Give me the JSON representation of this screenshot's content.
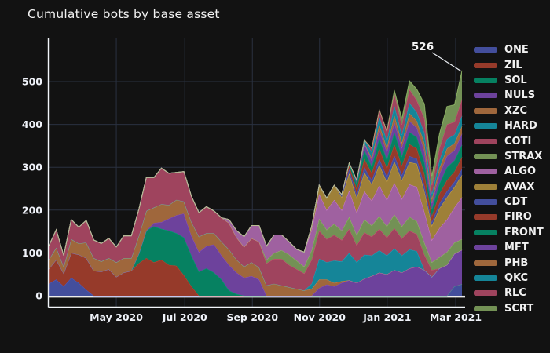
{
  "title": "Cumulative bots by base asset",
  "annotation": {
    "text": "526"
  },
  "colors": {
    "background": "#121212",
    "grid": "#2a3140",
    "axis_line": "#f2f5fa",
    "zero_line": "#ebebeb",
    "tick_text": "#f0f3fa",
    "annotation_line": "#eceff4"
  },
  "chart_data": {
    "type": "area",
    "stacked": true,
    "title": "Cumulative bots by base asset",
    "xlabel": "",
    "ylabel": "",
    "grid": true,
    "legend_position": "right",
    "y_ticks": [
      0,
      100,
      200,
      300,
      400,
      500
    ],
    "y_range": [
      -27,
      600
    ],
    "x_tick_labels": [
      "May 2020",
      "Jul 2020",
      "Sep 2020",
      "Nov 2020",
      "Jan 2021",
      "Mar 2021"
    ],
    "x_tick_positions": [
      0.163,
      0.328,
      0.491,
      0.653,
      0.816,
      0.981
    ],
    "annotation": {
      "text": "526",
      "value": 526,
      "point_index": 55
    },
    "palette_muted": [
      "#434e9c",
      "#963a2a",
      "#068161",
      "#6d429c",
      "#9f673c",
      "#158598",
      "#9f445e",
      "#739155",
      "#9f61a0",
      "#9e8038"
    ],
    "palette_solid": [
      "#636efa",
      "#ef553b",
      "#00cc96",
      "#ab63fa",
      "#ffa15a",
      "#19d3f3",
      "#ff6692",
      "#b6e880",
      "#ff97ff",
      "#fecb52"
    ],
    "n_points": 56,
    "series": [
      {
        "name": "ONE",
        "color_index": 0,
        "values": [
          28,
          38,
          22,
          42,
          30,
          14,
          0,
          0,
          0,
          0,
          0,
          0,
          0,
          0,
          0,
          0,
          0,
          0,
          0,
          0,
          0,
          0,
          0,
          0,
          0,
          0,
          0,
          0,
          0,
          0,
          0,
          0,
          0,
          0,
          0,
          0,
          0,
          0,
          0,
          0,
          0,
          0,
          0,
          0,
          0,
          0,
          0,
          0,
          0,
          0,
          0,
          0,
          0,
          0,
          22,
          27
        ]
      },
      {
        "name": "ZIL",
        "color_index": 1,
        "values": [
          34,
          46,
          30,
          58,
          66,
          74,
          58,
          56,
          62,
          44,
          54,
          58,
          76,
          88,
          78,
          84,
          72,
          70,
          48,
          22,
          0,
          0,
          0,
          0,
          0,
          0,
          0,
          0,
          0,
          0,
          0,
          0,
          0,
          0,
          0,
          0,
          0,
          0,
          0,
          0,
          0,
          0,
          0,
          0,
          0,
          0,
          0,
          0,
          0,
          0,
          0,
          0,
          0,
          0,
          0,
          0
        ]
      },
      {
        "name": "SOL",
        "color_index": 2,
        "values": [
          0,
          0,
          0,
          0,
          0,
          0,
          0,
          0,
          0,
          0,
          0,
          0,
          22,
          64,
          84,
          72,
          80,
          76,
          88,
          72,
          56,
          64,
          54,
          38,
          12,
          4,
          0,
          0,
          0,
          0,
          0,
          0,
          0,
          0,
          0,
          0,
          0,
          0,
          0,
          0,
          0,
          0,
          0,
          0,
          0,
          0,
          0,
          0,
          0,
          0,
          0,
          0,
          0,
          0,
          0,
          0
        ]
      },
      {
        "name": "NULS",
        "color_index": 3,
        "values": [
          0,
          0,
          0,
          0,
          0,
          0,
          0,
          0,
          0,
          0,
          0,
          0,
          0,
          0,
          8,
          16,
          28,
          42,
          56,
          46,
          46,
          52,
          66,
          56,
          60,
          50,
          42,
          46,
          38,
          0,
          0,
          0,
          0,
          0,
          0,
          0,
          18,
          26,
          22,
          30,
          36,
          30,
          40,
          46,
          54,
          50,
          60,
          54,
          64,
          68,
          60,
          44,
          64,
          72,
          76,
          80
        ]
      },
      {
        "name": "XZC",
        "color_index": 4,
        "values": [
          22,
          28,
          16,
          32,
          26,
          36,
          30,
          24,
          26,
          34,
          34,
          30,
          42,
          46,
          36,
          42,
          32,
          36,
          28,
          32,
          36,
          30,
          26,
          32,
          36,
          30,
          26,
          32,
          28,
          24,
          28,
          24,
          20,
          16,
          12,
          16,
          20,
          12,
          8,
          4,
          0,
          0,
          0,
          0,
          0,
          0,
          0,
          0,
          0,
          0,
          0,
          0,
          0,
          0,
          0,
          0
        ]
      },
      {
        "name": "HARD",
        "color_index": 5,
        "values": [
          0,
          0,
          0,
          0,
          0,
          0,
          0,
          0,
          0,
          0,
          0,
          0,
          0,
          0,
          0,
          0,
          0,
          0,
          0,
          0,
          0,
          0,
          0,
          0,
          0,
          0,
          0,
          0,
          0,
          0,
          0,
          0,
          0,
          0,
          0,
          12,
          48,
          40,
          52,
          46,
          64,
          48,
          56,
          48,
          52,
          44,
          50,
          40,
          44,
          36,
          0,
          0,
          0,
          0,
          0,
          0
        ]
      },
      {
        "name": "COTI",
        "color_index": 6,
        "values": [
          32,
          42,
          26,
          46,
          38,
          52,
          42,
          42,
          46,
          36,
          52,
          52,
          62,
          78,
          70,
          84,
          74,
          64,
          70,
          60,
          56,
          62,
          52,
          56,
          62,
          52,
          46,
          56,
          60,
          52,
          58,
          62,
          52,
          46,
          40,
          56,
          66,
          54,
          60,
          50,
          56,
          40,
          52,
          44,
          50,
          42,
          48,
          40,
          44,
          40,
          36,
          16,
          0,
          0,
          0,
          0
        ]
      },
      {
        "name": "STRAX",
        "color_index": 7,
        "values": [
          0,
          0,
          0,
          0,
          0,
          0,
          0,
          0,
          0,
          0,
          0,
          0,
          0,
          0,
          0,
          0,
          0,
          0,
          0,
          0,
          0,
          0,
          0,
          0,
          0,
          0,
          0,
          0,
          0,
          8,
          14,
          20,
          24,
          20,
          16,
          22,
          28,
          22,
          26,
          22,
          28,
          24,
          30,
          26,
          30,
          26,
          32,
          28,
          32,
          30,
          28,
          18,
          26,
          30,
          26,
          25
        ]
      },
      {
        "name": "ALGO",
        "color_index": 8,
        "values": [
          0,
          0,
          0,
          0,
          0,
          0,
          0,
          0,
          0,
          0,
          0,
          0,
          0,
          0,
          0,
          0,
          0,
          0,
          0,
          0,
          0,
          0,
          0,
          0,
          8,
          16,
          24,
          30,
          38,
          32,
          42,
          36,
          30,
          26,
          34,
          48,
          58,
          46,
          56,
          48,
          62,
          52,
          66,
          58,
          72,
          62,
          74,
          64,
          76,
          80,
          72,
          52,
          68,
          76,
          82,
          98
        ]
      },
      {
        "name": "AVAX",
        "color_index": 9,
        "values": [
          0,
          0,
          0,
          0,
          0,
          0,
          0,
          0,
          0,
          0,
          0,
          0,
          0,
          0,
          0,
          0,
          0,
          0,
          0,
          0,
          0,
          0,
          0,
          0,
          0,
          0,
          0,
          0,
          0,
          0,
          0,
          0,
          0,
          0,
          0,
          8,
          20,
          28,
          34,
          30,
          40,
          34,
          44,
          38,
          48,
          42,
          50,
          44,
          52,
          54,
          48,
          34,
          46,
          52,
          48,
          52
        ]
      },
      {
        "name": "CDT",
        "color_index": 0,
        "values": [
          0,
          0,
          0,
          0,
          0,
          0,
          0,
          0,
          0,
          0,
          0,
          0,
          0,
          0,
          0,
          0,
          0,
          0,
          0,
          0,
          0,
          0,
          0,
          0,
          0,
          0,
          0,
          0,
          0,
          0,
          0,
          0,
          0,
          0,
          0,
          0,
          0,
          0,
          0,
          6,
          10,
          8,
          12,
          10,
          14,
          12,
          14,
          12,
          14,
          12,
          14,
          8,
          12,
          14,
          12,
          14
        ]
      },
      {
        "name": "FIRO",
        "color_index": 1,
        "values": [
          0,
          0,
          0,
          0,
          0,
          0,
          0,
          0,
          0,
          0,
          0,
          0,
          0,
          0,
          0,
          0,
          0,
          0,
          0,
          0,
          0,
          0,
          0,
          0,
          0,
          0,
          0,
          0,
          0,
          0,
          0,
          0,
          0,
          0,
          0,
          0,
          0,
          0,
          0,
          0,
          8,
          14,
          20,
          16,
          24,
          20,
          26,
          22,
          28,
          24,
          26,
          14,
          22,
          26,
          24,
          28
        ]
      },
      {
        "name": "FRONT",
        "color_index": 2,
        "values": [
          0,
          0,
          0,
          0,
          0,
          0,
          0,
          0,
          0,
          0,
          0,
          0,
          0,
          0,
          0,
          0,
          0,
          0,
          0,
          0,
          0,
          0,
          0,
          0,
          0,
          0,
          0,
          0,
          0,
          0,
          0,
          0,
          0,
          0,
          0,
          0,
          0,
          0,
          0,
          0,
          6,
          12,
          20,
          16,
          24,
          20,
          28,
          22,
          28,
          26,
          28,
          16,
          24,
          30,
          26,
          28
        ]
      },
      {
        "name": "MFT",
        "color_index": 3,
        "values": [
          0,
          0,
          0,
          0,
          0,
          0,
          0,
          0,
          0,
          0,
          0,
          0,
          0,
          0,
          0,
          0,
          0,
          0,
          0,
          0,
          0,
          0,
          0,
          0,
          0,
          0,
          0,
          0,
          0,
          0,
          0,
          0,
          0,
          0,
          0,
          0,
          0,
          0,
          0,
          0,
          0,
          8,
          16,
          14,
          20,
          18,
          24,
          20,
          26,
          22,
          26,
          14,
          22,
          26,
          24,
          26
        ]
      },
      {
        "name": "PHB",
        "color_index": 4,
        "values": [
          0,
          0,
          0,
          0,
          0,
          0,
          0,
          0,
          0,
          0,
          0,
          0,
          0,
          0,
          0,
          0,
          0,
          0,
          0,
          0,
          0,
          0,
          0,
          0,
          0,
          0,
          0,
          0,
          0,
          0,
          0,
          0,
          0,
          0,
          0,
          0,
          0,
          0,
          0,
          0,
          0,
          0,
          0,
          6,
          12,
          10,
          16,
          12,
          18,
          16,
          18,
          10,
          14,
          18,
          16,
          18
        ]
      },
      {
        "name": "QKC",
        "color_index": 5,
        "values": [
          0,
          0,
          0,
          0,
          0,
          0,
          0,
          0,
          0,
          0,
          0,
          0,
          0,
          0,
          0,
          0,
          0,
          0,
          0,
          0,
          0,
          0,
          0,
          0,
          0,
          0,
          0,
          0,
          0,
          0,
          0,
          0,
          0,
          0,
          0,
          0,
          0,
          0,
          0,
          0,
          0,
          0,
          8,
          14,
          18,
          16,
          22,
          18,
          24,
          20,
          24,
          12,
          18,
          22,
          20,
          24
        ]
      },
      {
        "name": "RLC",
        "color_index": 6,
        "values": [
          0,
          0,
          0,
          0,
          0,
          0,
          0,
          0,
          0,
          0,
          0,
          0,
          0,
          0,
          0,
          0,
          0,
          0,
          0,
          0,
          0,
          0,
          0,
          0,
          0,
          0,
          0,
          0,
          0,
          0,
          0,
          0,
          0,
          0,
          0,
          0,
          0,
          0,
          0,
          0,
          0,
          0,
          0,
          8,
          16,
          22,
          28,
          24,
          32,
          28,
          34,
          20,
          28,
          34,
          30,
          38
        ]
      },
      {
        "name": "SCRT",
        "color_index": 7,
        "values": [
          0,
          0,
          0,
          0,
          0,
          0,
          0,
          0,
          0,
          0,
          0,
          0,
          0,
          0,
          0,
          0,
          0,
          0,
          0,
          0,
          0,
          0,
          0,
          0,
          0,
          0,
          0,
          0,
          0,
          0,
          0,
          0,
          0,
          0,
          0,
          0,
          0,
          0,
          0,
          0,
          0,
          0,
          0,
          0,
          0,
          0,
          8,
          14,
          20,
          26,
          34,
          22,
          34,
          42,
          40,
          68
        ]
      }
    ]
  }
}
